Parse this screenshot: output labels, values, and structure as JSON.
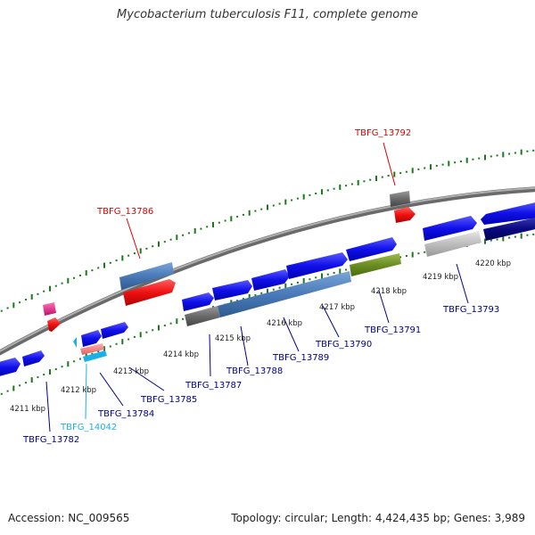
{
  "title": "Mycobacterium tuberculosis F11, complete genome",
  "footer": {
    "accession": "Accession: NC_009565",
    "summary": "Topology: circular; Length: 4,424,435 bp; Genes: 3,989"
  },
  "scale_labels": [
    "4211 kbp",
    "4212 kbp",
    "4213 kbp",
    "4214 kbp",
    "4215 kbp",
    "4216 kbp",
    "4217 kbp",
    "4218 kbp",
    "4219 kbp",
    "4220 kbp"
  ],
  "gene_labels": [
    {
      "id": "TBFG_13782",
      "color": "#00008b"
    },
    {
      "id": "TBFG_14042",
      "color": "#1ab2e6"
    },
    {
      "id": "TBFG_13784",
      "color": "#00008b"
    },
    {
      "id": "TBFG_13785",
      "color": "#00008b"
    },
    {
      "id": "TBFG_13786",
      "color": "#e00000"
    },
    {
      "id": "TBFG_13787",
      "color": "#00008b"
    },
    {
      "id": "TBFG_13788",
      "color": "#00008b"
    },
    {
      "id": "TBFG_13789",
      "color": "#00008b"
    },
    {
      "id": "TBFG_13790",
      "color": "#00008b"
    },
    {
      "id": "TBFG_13791",
      "color": "#00008b"
    },
    {
      "id": "TBFG_13792",
      "color": "#e00000"
    },
    {
      "id": "TBFG_13793",
      "color": "#00008b"
    }
  ],
  "colors": {
    "backbone": "#8c8c8c",
    "tick": "#1a7a1a",
    "gene_blue": "#1010e8",
    "gene_red": "#ee1111",
    "gene_steel": "#4a7ab8",
    "gene_olive": "#6b8e23",
    "gene_gray": "#6a6a6a",
    "gene_lightgray": "#bdbdbd",
    "gene_navy": "#0a0a80",
    "gene_pink": "#e0308a",
    "gene_cyan": "#1ab2e6",
    "gene_salmon": "#f08080"
  }
}
